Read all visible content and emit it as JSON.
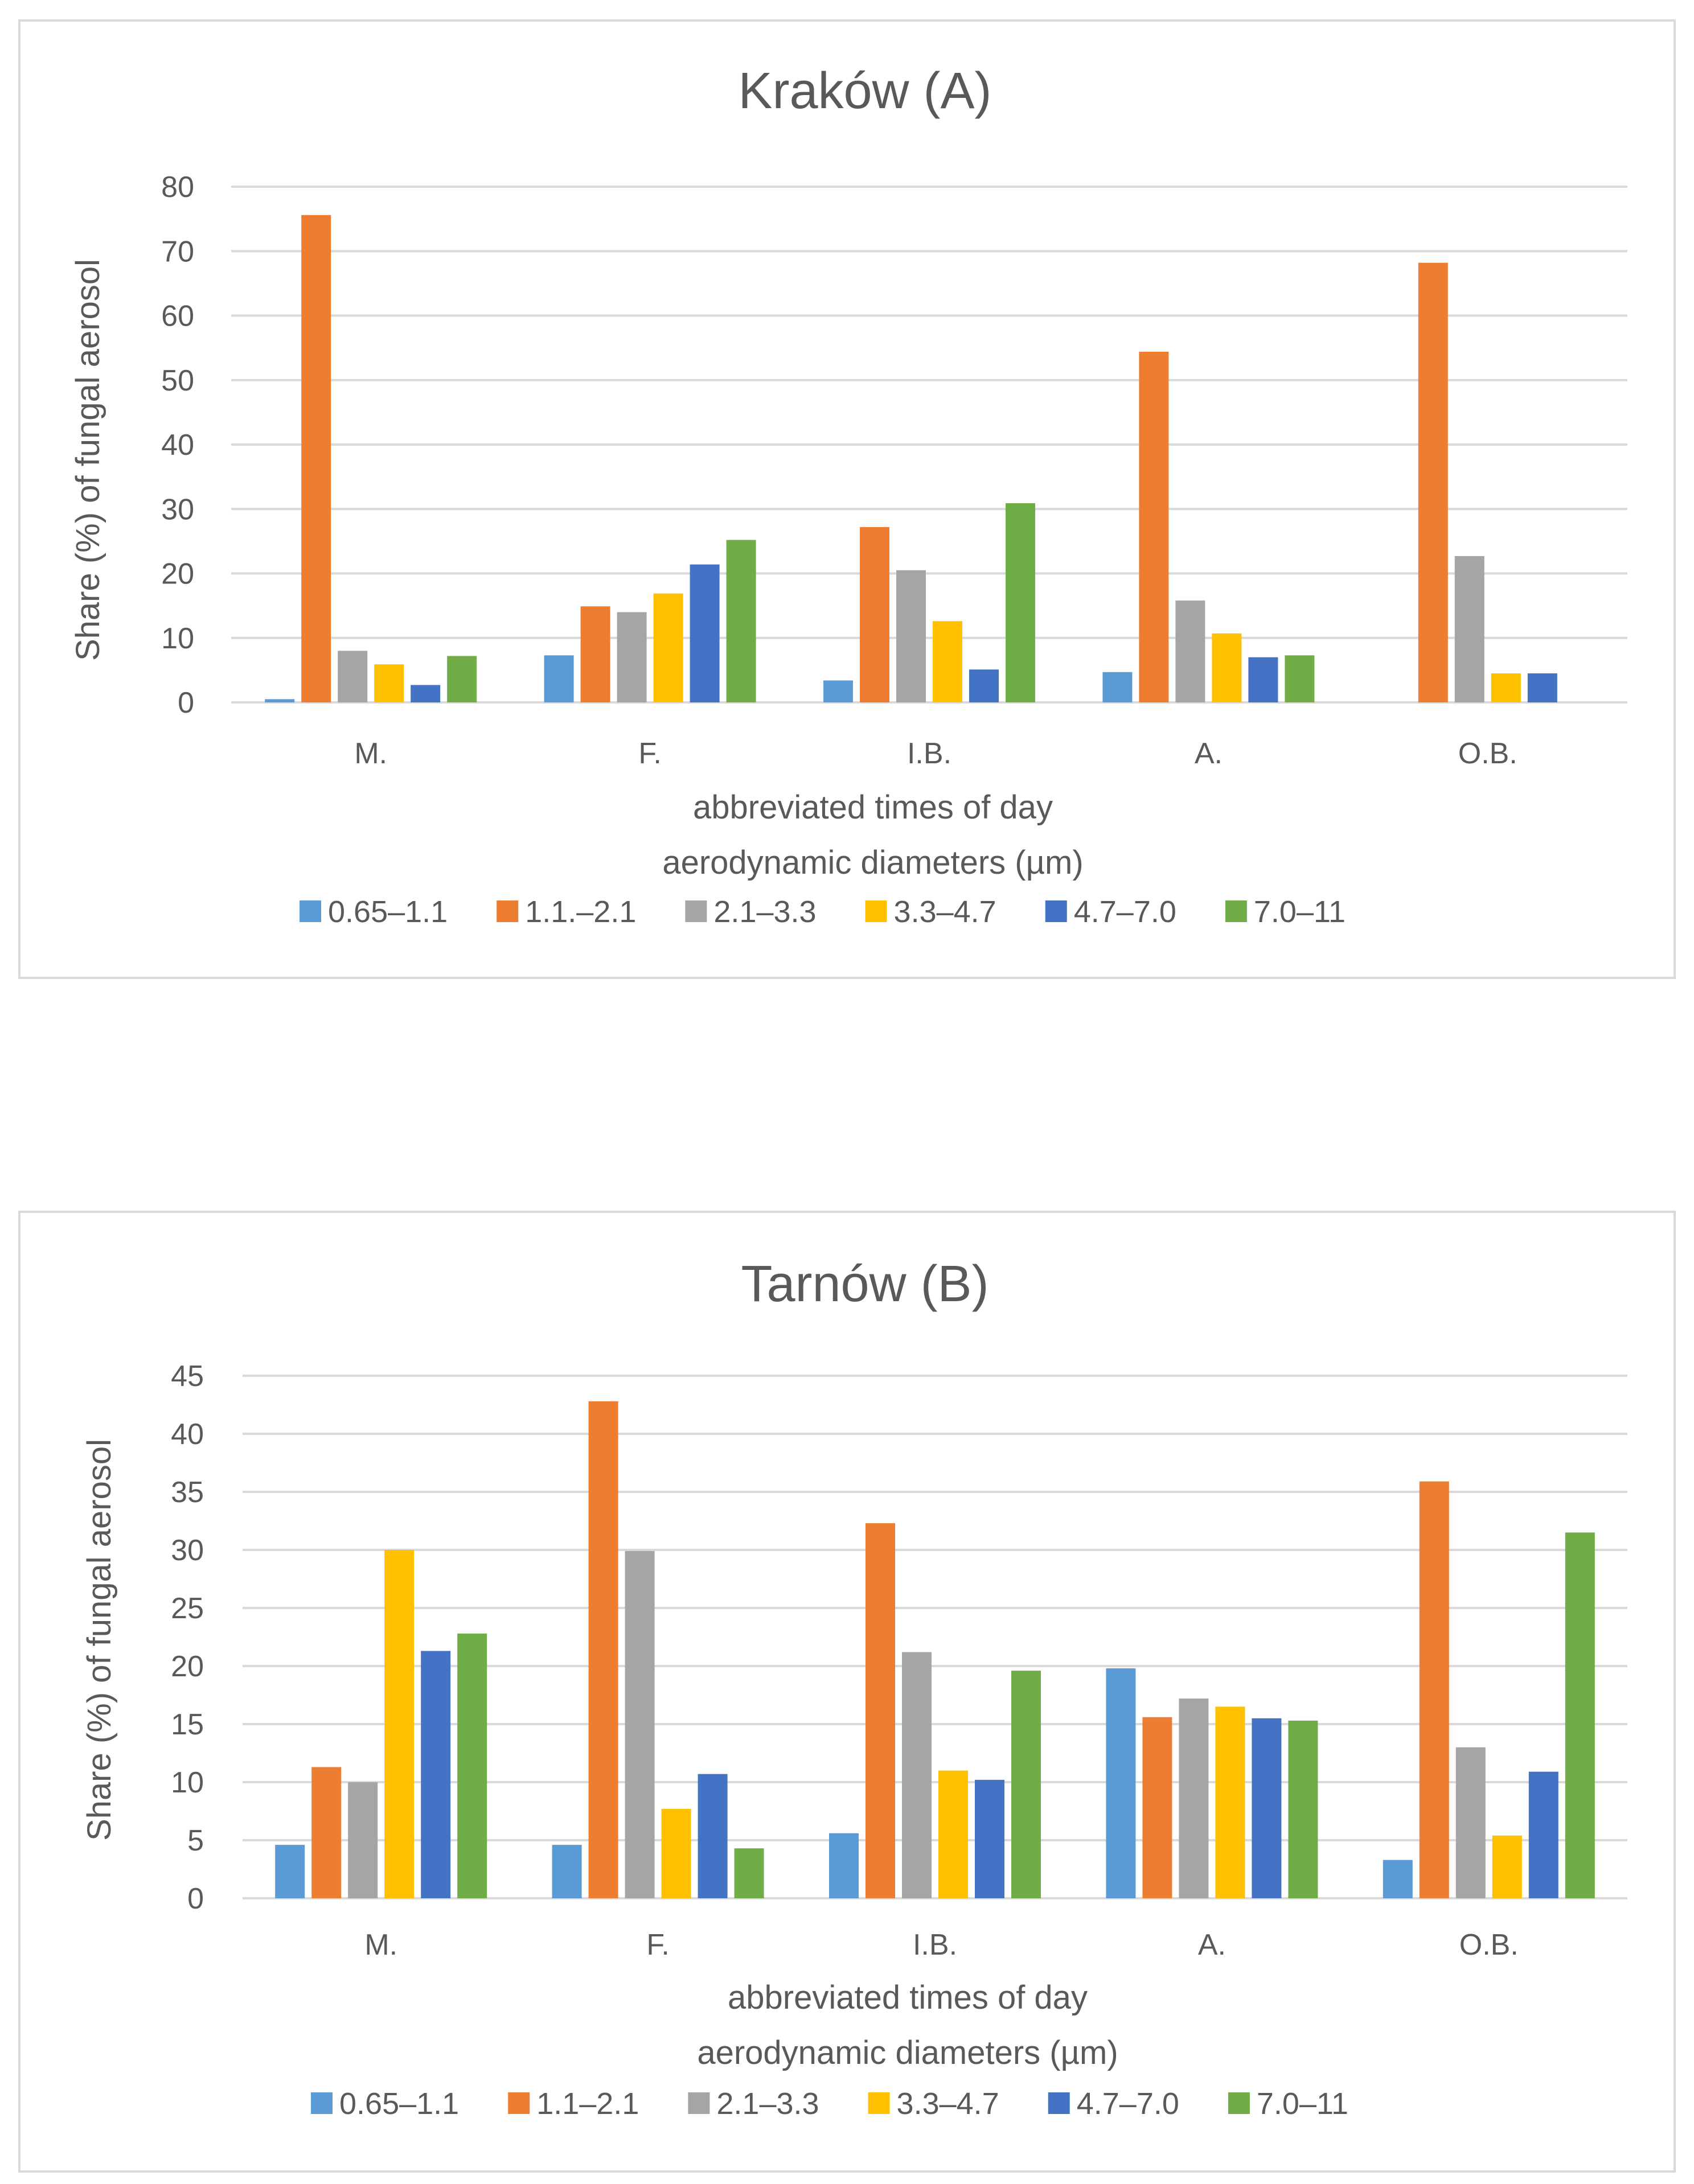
{
  "chart_data": [
    {
      "type": "bar",
      "title": "Kraków (A)",
      "xlabel": "abbreviated times of day",
      "ylabel": "Share (%) of fungal aerosol",
      "legend_title": "aerodynamic diameters (µm)",
      "legend_position": "bottom",
      "grid": true,
      "ylim": [
        0,
        80
      ],
      "yticks": [
        "0",
        "10",
        "20",
        "30",
        "40",
        "50",
        "60",
        "70",
        "80"
      ],
      "categories": [
        "M.",
        "F.",
        "I.B.",
        "A.",
        "O.B."
      ],
      "series": [
        {
          "name": "0.65–1.1",
          "color": "#5b9bd5",
          "values": [
            0.5,
            7.3,
            3.4,
            4.7,
            0
          ]
        },
        {
          "name": "1.1.–2.1",
          "color": "#ed7d31",
          "values": [
            75.6,
            14.9,
            27.2,
            54.4,
            68.2
          ]
        },
        {
          "name": "2.1–3.3",
          "color": "#a5a5a5",
          "values": [
            8.0,
            14.0,
            20.5,
            15.8,
            22.7
          ]
        },
        {
          "name": "3.3–4.7",
          "color": "#ffc000",
          "values": [
            5.9,
            16.9,
            12.6,
            10.7,
            4.5
          ]
        },
        {
          "name": "4.7–7.0",
          "color": "#4472c4",
          "values": [
            2.7,
            21.4,
            5.1,
            7.0,
            4.5
          ]
        },
        {
          "name": "7.0–11",
          "color": "#70ad47",
          "values": [
            7.2,
            25.2,
            30.9,
            7.3,
            0
          ]
        }
      ]
    },
    {
      "type": "bar",
      "title": "Tarnów (B)",
      "xlabel": "abbreviated times of day",
      "ylabel": "Share (%) of fungal aerosol",
      "legend_title": "aerodynamic diameters (µm)",
      "legend_position": "bottom",
      "grid": true,
      "ylim": [
        0,
        45
      ],
      "yticks": [
        "0",
        "5",
        "10",
        "15",
        "20",
        "25",
        "30",
        "35",
        "40",
        "45"
      ],
      "categories": [
        "M.",
        "F.",
        "I.B.",
        "A.",
        "O.B."
      ],
      "series": [
        {
          "name": "0.65–1.1",
          "color": "#5b9bd5",
          "values": [
            4.6,
            4.6,
            5.6,
            19.8,
            3.3
          ]
        },
        {
          "name": "1.1–2.1",
          "color": "#ed7d31",
          "values": [
            11.3,
            42.8,
            32.3,
            15.6,
            35.9
          ]
        },
        {
          "name": "2.1–3.3",
          "color": "#a5a5a5",
          "values": [
            10.0,
            29.9,
            21.2,
            17.2,
            13.0
          ]
        },
        {
          "name": "3.3–4.7",
          "color": "#ffc000",
          "values": [
            30.0,
            7.7,
            11.0,
            16.5,
            5.4
          ]
        },
        {
          "name": "4.7–7.0",
          "color": "#4472c4",
          "values": [
            21.3,
            10.7,
            10.2,
            15.5,
            10.9
          ]
        },
        {
          "name": "7.0–11",
          "color": "#70ad47",
          "values": [
            22.8,
            4.3,
            19.6,
            15.3,
            31.5
          ]
        }
      ]
    }
  ]
}
